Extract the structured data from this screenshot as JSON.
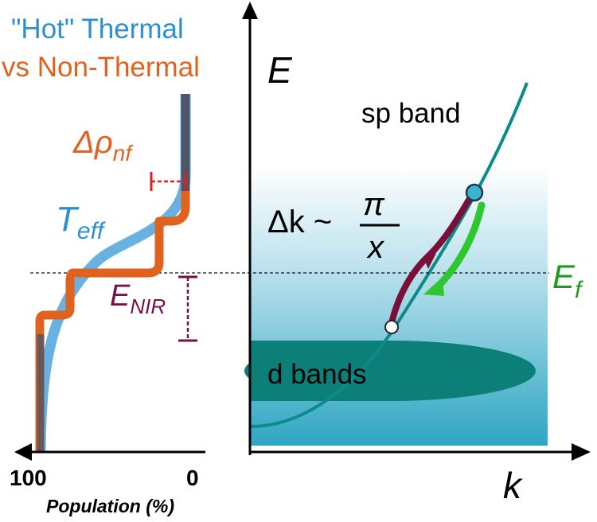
{
  "left_panel": {
    "title_line1": "\"Hot\" Thermal",
    "title_line2": "vs Non-Thermal",
    "delta_rho_symbol": "Δρ",
    "delta_rho_subscript": "nf",
    "t_eff_symbol": "T",
    "t_eff_subscript": "eff",
    "e_nir_symbol": "E",
    "e_nir_subscript": "NIR",
    "axis_tick_left": "100",
    "axis_tick_right": "0",
    "axis_label": "Population (%)"
  },
  "right_panel": {
    "energy_axis_label": "E",
    "momentum_axis_label": "k",
    "sp_band_label": "sp band",
    "d_bands_label": "d bands",
    "delta_k_lhs": "Δk ~",
    "delta_k_numerator": "π",
    "delta_k_denominator": "x",
    "fermi_symbol": "E",
    "fermi_subscript": "f"
  },
  "colors": {
    "thermal_blue": "#2e8fd0",
    "nonthermal_orange": "#e0621f",
    "dark_curve": "#4d5566",
    "teal_band": "#0a8c88",
    "d_band_fill": "#0d7f79",
    "maroon_arrow": "#7a0f3a",
    "green_arrow": "#2ec82e",
    "fermi_green": "#1f9a1f",
    "red_bracket": "#e02020",
    "nir_marker": "#7a1045",
    "gradient_top": "#ffffff",
    "gradient_bottom": "#35aac6"
  }
}
